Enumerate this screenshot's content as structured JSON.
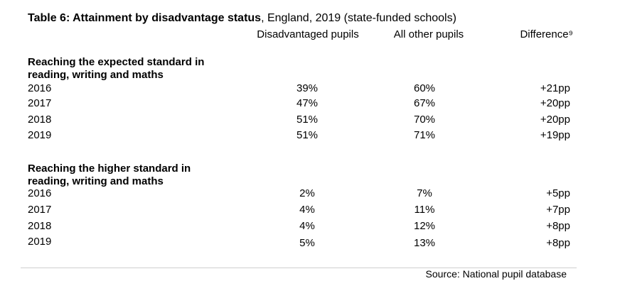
{
  "title": {
    "bold": "Table 6: Attainment by disadvantage status",
    "rest": ", England, 2019 (state-funded schools)"
  },
  "columns": [
    "Disadvantaged pupils",
    "All other pupils",
    "Difference⁹"
  ],
  "sections": [
    {
      "heading": "Reaching the expected standard in reading, writing and maths",
      "rows": [
        {
          "year": "2016",
          "disadvantaged": "39%",
          "other": "60%",
          "difference": "+21pp"
        },
        {
          "year": "2017",
          "disadvantaged": "47%",
          "other": "67%",
          "difference": "+20pp"
        },
        {
          "year": "2018",
          "disadvantaged": "51%",
          "other": "70%",
          "difference": "+20pp"
        },
        {
          "year": "2019",
          "disadvantaged": "51%",
          "other": "71%",
          "difference": "+19pp"
        }
      ]
    },
    {
      "heading": "Reaching the higher standard in reading, writing and maths",
      "rows": [
        {
          "year": "2016",
          "disadvantaged": "2%",
          "other": "7%",
          "difference": "+5pp"
        },
        {
          "year": "2017",
          "disadvantaged": "4%",
          "other": "11%",
          "difference": "+7pp"
        },
        {
          "year": "2018",
          "disadvantaged": "4%",
          "other": "12%",
          "difference": "+8pp"
        },
        {
          "year": "2019",
          "disadvantaged": "5%",
          "other": "13%",
          "difference": "+8pp"
        }
      ]
    }
  ],
  "source": "Source: National pupil database"
}
